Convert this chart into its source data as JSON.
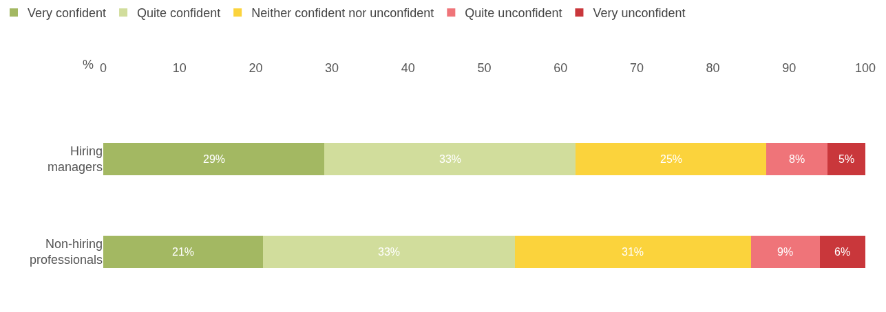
{
  "chart_data": {
    "type": "bar",
    "orientation": "horizontal",
    "stacked": true,
    "xlabel": "%",
    "categories": [
      "Hiring managers",
      "Non-hiring professionals"
    ],
    "xlim": [
      0,
      100
    ],
    "xticks": [
      0,
      10,
      20,
      30,
      40,
      50,
      60,
      70,
      80,
      90,
      100
    ],
    "series": [
      {
        "name": "Very confident",
        "color": "#a3b862",
        "values": [
          29,
          21
        ],
        "value_labels": [
          "29%",
          "21%"
        ]
      },
      {
        "name": "Quite confident",
        "color": "#d1dd9c",
        "values": [
          33,
          33
        ],
        "value_labels": [
          "33%",
          "33%"
        ]
      },
      {
        "name": "Neither confident nor unconfident",
        "color": "#fbd33c",
        "values": [
          25,
          31
        ],
        "value_labels": [
          "25%",
          "31%"
        ]
      },
      {
        "name": "Quite unconfident",
        "color": "#ef7479",
        "values": [
          8,
          9
        ],
        "value_labels": [
          "8%",
          "9%"
        ]
      },
      {
        "name": "Very unconfident",
        "color": "#c9373b",
        "values": [
          5,
          6
        ],
        "value_labels": [
          "5%",
          "6%"
        ]
      }
    ],
    "legend": "top left"
  }
}
